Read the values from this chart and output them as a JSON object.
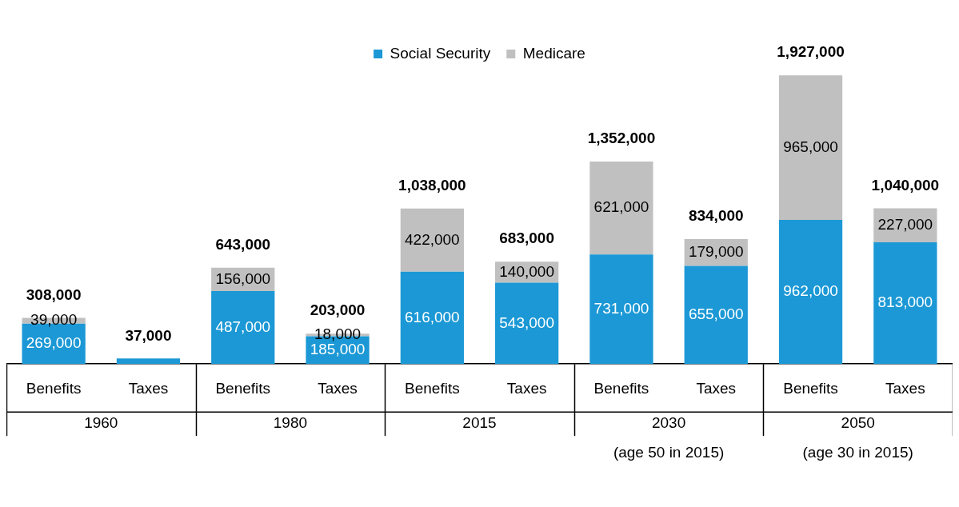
{
  "chart_data": {
    "type": "bar",
    "stacked": true,
    "legend": "top",
    "grid": false,
    "categories": [
      "Benefits",
      "Taxes",
      "Benefits",
      "Taxes",
      "Benefits",
      "Taxes",
      "Benefits",
      "Taxes",
      "Benefits",
      "Taxes"
    ],
    "series": [
      {
        "name": "Social Security",
        "color": "#1b98d5",
        "values": [
          269000,
          37000,
          487000,
          185000,
          616000,
          543000,
          731000,
          655000,
          962000,
          813000
        ],
        "value_labels": [
          "269,000",
          null,
          "487,000",
          "185,000",
          "616,000",
          "543,000",
          "731,000",
          "655,000",
          "962,000",
          "813,000"
        ]
      },
      {
        "name": "Medicare",
        "color": "#c0c0c0",
        "values": [
          39000,
          null,
          156000,
          18000,
          422000,
          140000,
          621000,
          179000,
          965000,
          227000
        ],
        "value_labels": [
          "39,000",
          null,
          "156,000",
          "18,000",
          "422,000",
          "140,000",
          "621,000",
          "179,000",
          "965,000",
          "227,000"
        ]
      }
    ],
    "totals": [
      "308,000",
      "37,000",
      "643,000",
      "203,000",
      "1,038,000",
      "683,000",
      "1,352,000",
      "834,000",
      "1,927,000",
      "1,040,000"
    ],
    "annotations": [
      "1960",
      "1980",
      "2015",
      "2030",
      "2050",
      "(age 50 in 2015)",
      "(age 30 in 2015)"
    ]
  }
}
